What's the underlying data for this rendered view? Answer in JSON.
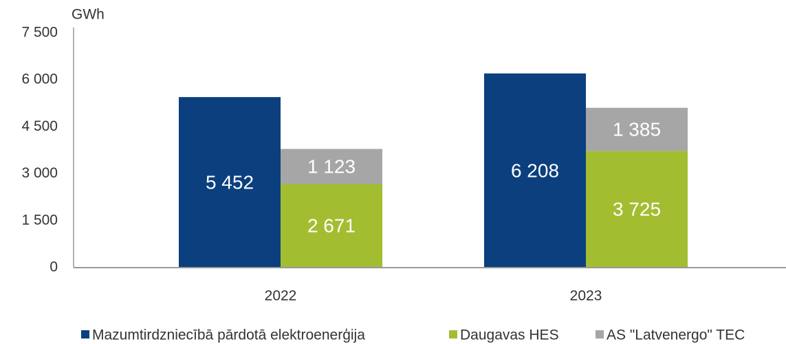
{
  "chart_data": {
    "type": "bar",
    "y_axis_label": "GWh",
    "categories": [
      "2022",
      "2023"
    ],
    "series": [
      {
        "name": "Mazumtirdzniecībā pārdotā elektroenerģija",
        "color": "#0b3f7e",
        "values": [
          5452,
          6208
        ],
        "value_labels": [
          "5 452",
          "6 208"
        ]
      },
      {
        "name": "Daugavas HES",
        "color": "#a3bd31",
        "values": [
          2671,
          3725
        ],
        "value_labels": [
          "2 671",
          "3 725"
        ]
      },
      {
        "name": "AS \"Latvenergo\" TEC",
        "color": "#a6a6a6",
        "values": [
          1123,
          1385
        ],
        "value_labels": [
          "1 123",
          "1 385"
        ]
      }
    ],
    "ylim": [
      0,
      7500
    ],
    "yticks": [
      0,
      {
        "value": 1500,
        "label": "1 500"
      },
      {
        "value": 3000,
        "label": "3 000"
      },
      {
        "value": 4500,
        "label": "4 500"
      },
      {
        "value": 6000,
        "label": "6 000"
      },
      {
        "value": 7500,
        "label": "7 500"
      }
    ],
    "grid": false,
    "legend": "bottom"
  }
}
